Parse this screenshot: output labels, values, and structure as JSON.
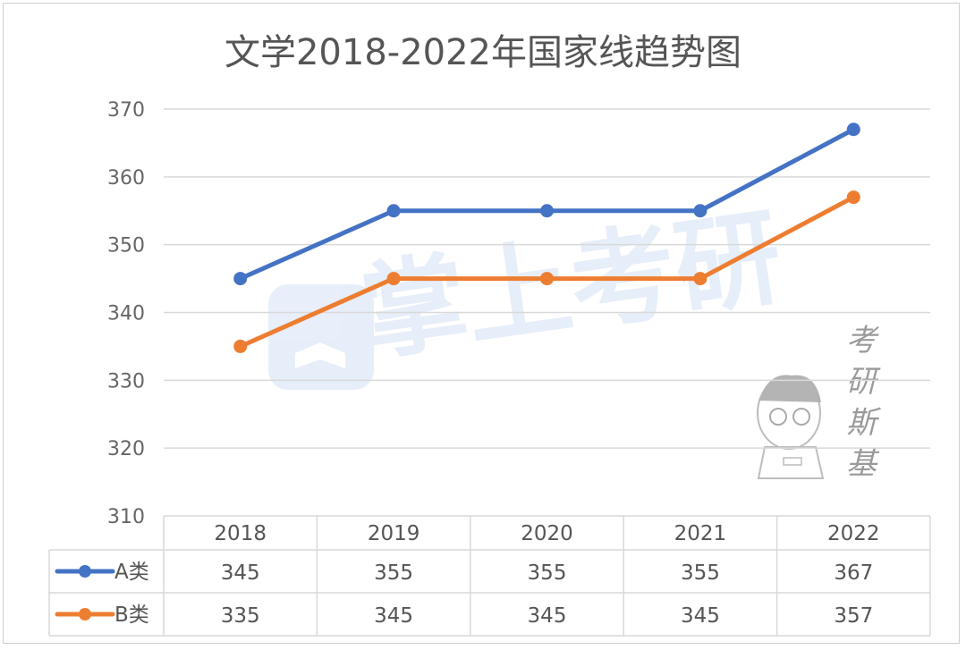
{
  "chart_data": {
    "type": "line",
    "title": "文学2018-2022年国家线趋势图",
    "categories": [
      "2018",
      "2019",
      "2020",
      "2021",
      "2022"
    ],
    "series": [
      {
        "name": "A类",
        "color": "#4472C4",
        "values": [
          345,
          355,
          355,
          355,
          367
        ]
      },
      {
        "name": "B类",
        "color": "#ED7D31",
        "values": [
          335,
          345,
          345,
          345,
          357
        ]
      }
    ],
    "yticks": [
      "310",
      "320",
      "330",
      "340",
      "350",
      "360",
      "370"
    ],
    "ylim": [
      310,
      370
    ],
    "grid": true,
    "legend": "data-table",
    "data_table": true
  },
  "watermarks": {
    "center_logo": "掌上考研",
    "right_text": "考研斯基"
  }
}
